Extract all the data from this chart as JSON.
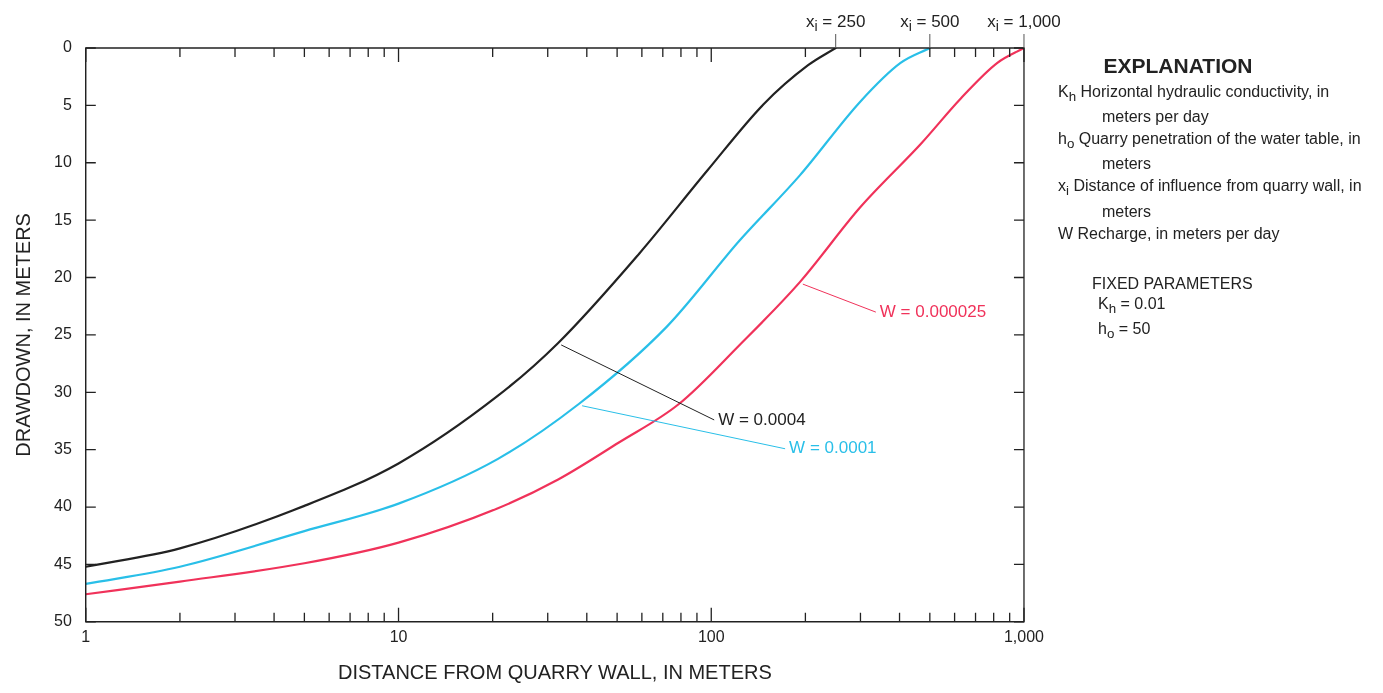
{
  "chart_data": {
    "type": "line",
    "xlabel": "DISTANCE FROM QUARRY WALL, IN METERS",
    "ylabel": "DRAWDOWN, IN METERS",
    "xlim": [
      1,
      1000
    ],
    "ylim": [
      50,
      0
    ],
    "log": "x",
    "grid": false,
    "legend": false,
    "marker": "none",
    "line_style": "solid",
    "xticks": [
      {
        "value": 1,
        "label": "1"
      },
      {
        "value": 2,
        "label": null
      },
      {
        "value": 3,
        "label": null
      },
      {
        "value": 4,
        "label": null
      },
      {
        "value": 5,
        "label": null
      },
      {
        "value": 6,
        "label": null
      },
      {
        "value": 7,
        "label": null
      },
      {
        "value": 8,
        "label": null
      },
      {
        "value": 9,
        "label": null
      },
      {
        "value": 10,
        "label": "10"
      },
      {
        "value": 20,
        "label": null
      },
      {
        "value": 30,
        "label": null
      },
      {
        "value": 40,
        "label": null
      },
      {
        "value": 50,
        "label": null
      },
      {
        "value": 60,
        "label": null
      },
      {
        "value": 70,
        "label": null
      },
      {
        "value": 80,
        "label": null
      },
      {
        "value": 90,
        "label": null
      },
      {
        "value": 100,
        "label": "100"
      },
      {
        "value": 200,
        "label": null
      },
      {
        "value": 300,
        "label": null
      },
      {
        "value": 400,
        "label": null
      },
      {
        "value": 500,
        "label": null
      },
      {
        "value": 600,
        "label": null
      },
      {
        "value": 700,
        "label": null
      },
      {
        "value": 800,
        "label": null
      },
      {
        "value": 900,
        "label": null
      },
      {
        "value": 1000,
        "label": "1,000"
      }
    ],
    "yticks": [
      0,
      5,
      10,
      15,
      20,
      25,
      30,
      35,
      40,
      45,
      50
    ],
    "series": [
      {
        "name": "W = 0.0004",
        "color": "#222222",
        "x": [
          1,
          2,
          5,
          10,
          20.8,
          32.4,
          58.9,
          97,
          147,
          204,
          250
        ],
        "values": [
          45.2,
          43.6,
          39.9,
          36.2,
          30.3,
          25.7,
          17.9,
          10.7,
          4.9,
          1.5,
          0
        ]
      },
      {
        "name": "W = 0.0001",
        "color": "#29bfe8",
        "x": [
          1,
          2,
          5,
          10,
          20.8,
          37.8,
          72,
          123,
          192,
          299,
          403,
          500
        ],
        "values": [
          46.7,
          45.2,
          42.1,
          39.7,
          35.8,
          31.0,
          24.3,
          16.8,
          11.1,
          4.7,
          1.3,
          0
        ]
      },
      {
        "name": "W = 0.000025",
        "color": "#f0325a",
        "x": [
          1,
          2,
          5,
          10,
          20.8,
          32.4,
          50.5,
          79,
          123,
          192,
          299,
          470,
          628,
          822,
          1000
        ],
        "values": [
          47.6,
          46.5,
          44.9,
          43.1,
          40.1,
          37.6,
          34.4,
          31.0,
          25.9,
          20.4,
          13.9,
          8.3,
          4.4,
          1.3,
          0
        ]
      }
    ],
    "annotations": [
      {
        "text": "x$_{i}$ = 250",
        "x": 250,
        "y": 0
      },
      {
        "text": "x$_{i}$ = 500",
        "x": 500,
        "y": 0
      },
      {
        "text": "x$_{i}$ = 1,000",
        "x": 1000,
        "y": 0
      },
      "EXPLANATION",
      "K$_{h}$ Horizontal hydraulic conductivity, in meters per day",
      "h$_{o}$ Quarry penetration of the water table, in meters",
      "x$_{i}$ Distance of influence from quarry wall, in meters",
      "W Recharge, in meters per day",
      "FIXED PARAMETERS",
      "K$_{h}$ = 0.01",
      "h$_{o}$ = 50"
    ]
  }
}
